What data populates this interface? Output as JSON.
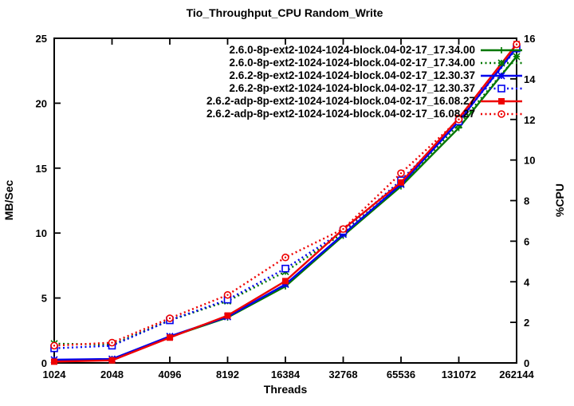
{
  "chart_data": {
    "type": "line",
    "title": "Tio_Throughput_CPU Random_Write",
    "xlabel": "Threads",
    "ylabel_left": "MB/Sec",
    "ylabel_right": "%CPU",
    "x_categories": [
      "1024",
      "2048",
      "4096",
      "8192",
      "16384",
      "32768",
      "65536",
      "131072",
      "262144"
    ],
    "ylim_left": [
      0,
      25
    ],
    "ylim_right": [
      0,
      16
    ],
    "left_ticks": [
      0,
      5,
      10,
      15,
      20,
      25
    ],
    "right_ticks": [
      0,
      2,
      4,
      6,
      8,
      10,
      12,
      14,
      16
    ],
    "grid": false,
    "legend_position": "top-right-inside",
    "colors": {
      "green": "#007700",
      "blue": "#0000ee",
      "red": "#ee0000"
    },
    "series": [
      {
        "name": "2.6.0-8p-ext2-1024-1024-block.04-02-17_17.34.00",
        "axis": "left",
        "style": "solid",
        "color": "#007700",
        "marker": "plus",
        "values": [
          0.2,
          0.3,
          2.0,
          3.5,
          5.9,
          9.8,
          13.6,
          18.1,
          23.6
        ]
      },
      {
        "name": "2.6.0-8p-ext2-1024-1024-block.04-02-17_17.34.00",
        "axis": "right",
        "style": "dotted",
        "color": "#007700",
        "marker": "asterisk",
        "values": [
          0.95,
          0.9,
          2.1,
          3.05,
          4.5,
          6.4,
          8.8,
          11.75,
          15.1
        ]
      },
      {
        "name": "2.6.2-8p-ext2-1024-1024-block.04-02-17_12.30.37",
        "axis": "left",
        "style": "solid",
        "color": "#0000ee",
        "marker": "star",
        "values": [
          0.25,
          0.3,
          2.05,
          3.55,
          6.05,
          9.9,
          13.75,
          18.6,
          24.3
        ]
      },
      {
        "name": "2.6.2-8p-ext2-1024-1024-block.04-02-17_12.30.37",
        "axis": "right",
        "style": "dotted",
        "color": "#0000ee",
        "marker": "square-open",
        "values": [
          0.72,
          0.85,
          2.1,
          3.12,
          4.65,
          6.5,
          9.0,
          11.9,
          15.5
        ]
      },
      {
        "name": "2.6.2-adp-8p-ext2-1024-1024-block.04-02-17_16.08.27",
        "axis": "left",
        "style": "solid",
        "color": "#ee0000",
        "marker": "square-filled",
        "values": [
          0.1,
          0.2,
          1.95,
          3.65,
          6.3,
          10.3,
          13.9,
          18.85,
          24.55
        ]
      },
      {
        "name": "2.6.2-adp-8p-ext2-1024-1024-block.04-02-17_16.08.27",
        "axis": "right",
        "style": "dotted",
        "color": "#ee0000",
        "marker": "circle-open",
        "values": [
          0.85,
          1.0,
          2.2,
          3.35,
          5.2,
          6.6,
          9.35,
          12.0,
          15.7
        ]
      }
    ]
  }
}
